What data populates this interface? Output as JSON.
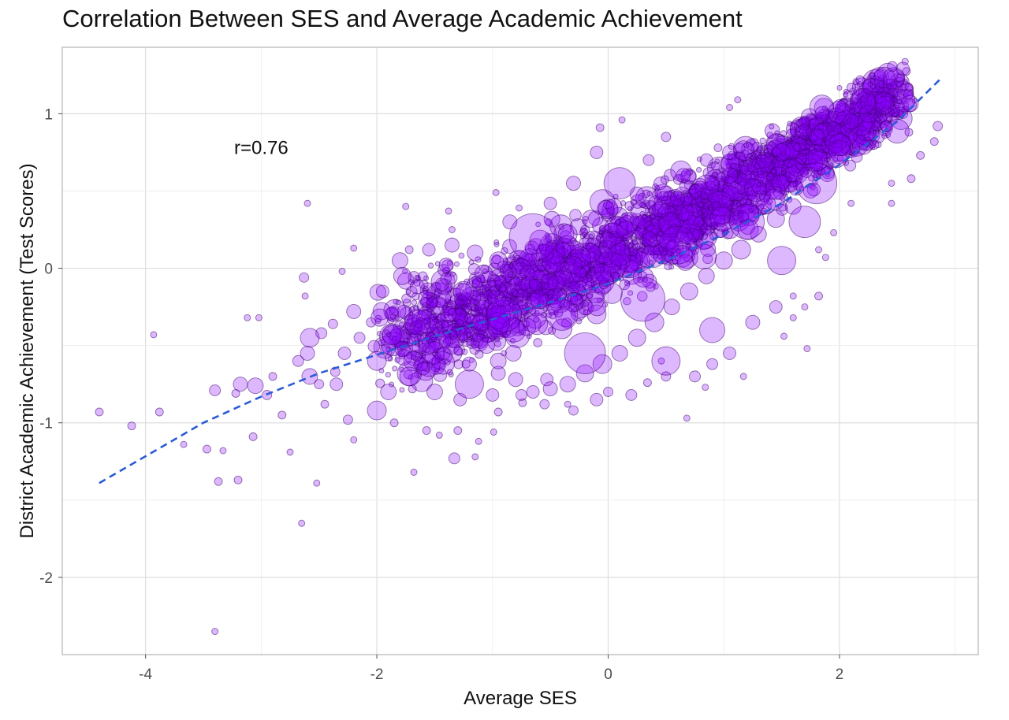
{
  "chart_data": {
    "type": "scatter",
    "title": "Correlation Between SES and Average Academic Achievement",
    "xlabel": "Average SES",
    "ylabel": "District Academic Achievement (Test Scores)",
    "xlim": [
      -4.72,
      3.2
    ],
    "ylim": [
      -2.5,
      1.43
    ],
    "x_ticks": [
      -4,
      -2,
      0,
      2
    ],
    "x_tick_labels": [
      "-4",
      "-2",
      "0",
      "2"
    ],
    "y_ticks": [
      -2,
      -1,
      0,
      1
    ],
    "y_tick_labels": [
      "-2",
      "-1",
      "0",
      "1"
    ],
    "grid": true,
    "legend": "none",
    "annotation": {
      "text": "r=0.76",
      "x": -3.0,
      "y": 0.78
    },
    "point_color": "#8800ff",
    "point_outline": "#3a0066",
    "trend_color": "#2b5bd6",
    "trend_line": {
      "style": "dashed",
      "x": [
        -4.4,
        -3.5,
        -3.0,
        -2.5,
        -2.0,
        -1.5,
        -1.0,
        -0.5,
        0.0,
        0.5,
        1.0,
        1.5,
        2.0,
        2.5,
        2.88
      ],
      "y": [
        -1.39,
        -1.0,
        -0.83,
        -0.68,
        -0.56,
        -0.44,
        -0.33,
        -0.22,
        -0.1,
        0.05,
        0.22,
        0.42,
        0.67,
        0.95,
        1.23
      ]
    },
    "points": [
      [
        -4.4,
        -0.93,
        5
      ],
      [
        -4.12,
        -1.02,
        5
      ],
      [
        -3.88,
        -0.93,
        5
      ],
      [
        -3.93,
        -0.43,
        4
      ],
      [
        -3.67,
        -1.14,
        4
      ],
      [
        -3.4,
        -0.79,
        7
      ],
      [
        -3.47,
        -1.17,
        5
      ],
      [
        -3.37,
        -1.38,
        5
      ],
      [
        -3.33,
        -1.18,
        4
      ],
      [
        -3.2,
        -1.37,
        5
      ],
      [
        -3.12,
        -0.32,
        4
      ],
      [
        -3.02,
        -0.32,
        4
      ],
      [
        -3.07,
        -1.09,
        5
      ],
      [
        -3.4,
        -2.35,
        4
      ],
      [
        -2.65,
        -1.65,
        4
      ],
      [
        -2.75,
        -1.19,
        4
      ],
      [
        -2.52,
        -1.39,
        4
      ],
      [
        -2.2,
        -1.11,
        4
      ],
      [
        -2.62,
        -0.18,
        4
      ],
      [
        -2.6,
        0.42,
        4
      ],
      [
        -2.63,
        -0.06,
        6
      ],
      [
        -2.3,
        -0.02,
        4
      ],
      [
        -2.2,
        0.13,
        4
      ],
      [
        -1.75,
        0.4,
        4
      ],
      [
        -1.72,
        0.12,
        5
      ],
      [
        -1.38,
        0.37,
        4
      ],
      [
        -1.35,
        0.25,
        4
      ],
      [
        -0.97,
        0.49,
        4
      ],
      [
        -0.77,
        0.39,
        4
      ],
      [
        -0.07,
        0.91,
        5
      ],
      [
        0.12,
        0.96,
        4
      ],
      [
        1.05,
        1.04,
        4
      ],
      [
        1.12,
        1.09,
        4
      ],
      [
        0.95,
        0.78,
        5
      ],
      [
        1.4,
        0.86,
        4
      ],
      [
        2.35,
        1.25,
        7
      ],
      [
        2.52,
        1.23,
        5
      ],
      [
        2.6,
        1.17,
        5
      ],
      [
        2.85,
        0.92,
        6
      ],
      [
        2.82,
        0.82,
        5
      ],
      [
        2.7,
        0.73,
        5
      ],
      [
        2.62,
        0.58,
        5
      ],
      [
        2.45,
        0.55,
        4
      ],
      [
        2.45,
        0.42,
        4
      ],
      [
        2.1,
        0.42,
        4
      ],
      [
        1.95,
        0.23,
        4
      ],
      [
        1.82,
        0.12,
        4
      ],
      [
        1.88,
        0.07,
        4
      ],
      [
        1.82,
        -0.18,
        5
      ],
      [
        1.7,
        -0.25,
        4
      ],
      [
        1.6,
        -0.18,
        4
      ],
      [
        1.6,
        -0.32,
        4
      ],
      [
        1.52,
        -0.44,
        4
      ],
      [
        1.72,
        -0.52,
        4
      ],
      [
        1.17,
        -0.7,
        4
      ],
      [
        0.84,
        -0.77,
        4
      ],
      [
        0.68,
        -0.97,
        4
      ],
      [
        0.5,
        -0.7,
        6
      ],
      [
        0.46,
        -0.6,
        4
      ],
      [
        0.34,
        -0.74,
        5
      ],
      [
        0.0,
        -0.8,
        6
      ],
      [
        -0.3,
        -0.92,
        6
      ],
      [
        -0.35,
        -0.88,
        4
      ],
      [
        -0.53,
        -0.72,
        8
      ],
      [
        -0.74,
        -0.87,
        5
      ],
      [
        -0.95,
        -0.93,
        5
      ],
      [
        -0.99,
        -1.06,
        4
      ],
      [
        -1.12,
        -1.12,
        4
      ],
      [
        -1.15,
        -1.22,
        4
      ],
      [
        -1.3,
        -1.05,
        5
      ],
      [
        -1.33,
        -1.23,
        7
      ],
      [
        -1.46,
        -1.08,
        4
      ],
      [
        -1.57,
        -1.05,
        5
      ],
      [
        -1.68,
        -1.32,
        4
      ],
      [
        -1.85,
        -1.0,
        5
      ],
      [
        -2.0,
        -0.92,
        12
      ],
      [
        -1.9,
        -0.8,
        10
      ],
      [
        -2.25,
        -0.98,
        6
      ],
      [
        -2.45,
        -0.88,
        5
      ],
      [
        -2.5,
        -0.75,
        6
      ],
      [
        -2.58,
        -0.7,
        10
      ],
      [
        -2.68,
        -0.6,
        7
      ],
      [
        -2.6,
        -0.55,
        9
      ],
      [
        -2.82,
        -0.95,
        5
      ],
      [
        -2.95,
        -0.82,
        6
      ],
      [
        -3.05,
        -0.76,
        10
      ],
      [
        -3.18,
        -0.75,
        9
      ],
      [
        -2.9,
        -0.7,
        5
      ],
      [
        -3.22,
        -0.81,
        5
      ],
      [
        -2.36,
        -0.67,
        6
      ],
      [
        -2.28,
        -0.55,
        8
      ],
      [
        -2.15,
        -0.45,
        7
      ],
      [
        -2.05,
        -0.35,
        6
      ],
      [
        -2.2,
        -0.28,
        9
      ],
      [
        -2.38,
        -0.36,
        6
      ],
      [
        -2.48,
        -0.42,
        7
      ],
      [
        -2.58,
        -0.45,
        12
      ],
      [
        -1.95,
        -0.15,
        8
      ],
      [
        -1.78,
        -0.05,
        11
      ],
      [
        -1.65,
        -0.12,
        9
      ],
      [
        -1.52,
        -0.22,
        7
      ],
      [
        -1.38,
        -0.3,
        10
      ],
      [
        -1.25,
        -0.42,
        9
      ],
      [
        -1.42,
        -0.55,
        8
      ],
      [
        -1.6,
        -0.65,
        8
      ],
      [
        -1.72,
        -0.7,
        12
      ],
      [
        -1.5,
        -0.8,
        10
      ],
      [
        -1.28,
        -0.85,
        8
      ],
      [
        -1.2,
        -0.62,
        9
      ],
      [
        -1.05,
        -0.5,
        10
      ],
      [
        -0.95,
        -0.68,
        9
      ],
      [
        -0.82,
        -0.55,
        10
      ],
      [
        -0.7,
        -0.38,
        11
      ],
      [
        -0.6,
        -0.2,
        12
      ],
      [
        -0.45,
        -0.1,
        10
      ],
      [
        -0.3,
        0.02,
        11
      ],
      [
        -0.15,
        0.1,
        12
      ],
      [
        0.0,
        0.18,
        10
      ],
      [
        0.15,
        0.25,
        11
      ],
      [
        0.3,
        0.3,
        9
      ],
      [
        0.45,
        0.38,
        10
      ],
      [
        0.6,
        0.45,
        9
      ],
      [
        0.75,
        0.5,
        8
      ],
      [
        0.9,
        0.55,
        9
      ],
      [
        1.05,
        0.6,
        10
      ],
      [
        1.2,
        0.65,
        9
      ],
      [
        1.35,
        0.7,
        10
      ],
      [
        1.5,
        0.75,
        11
      ],
      [
        1.65,
        0.8,
        9
      ],
      [
        1.8,
        0.85,
        10
      ],
      [
        1.95,
        0.9,
        9
      ],
      [
        2.1,
        0.95,
        10
      ],
      [
        2.25,
        1.0,
        11
      ],
      [
        2.2,
        1.08,
        16
      ],
      [
        2.0,
        1.05,
        8
      ],
      [
        1.85,
        1.0,
        9
      ],
      [
        1.7,
        0.95,
        7
      ],
      [
        2.4,
        0.92,
        7
      ],
      [
        2.55,
        1.0,
        6
      ],
      [
        2.6,
        0.88,
        5
      ],
      [
        2.15,
        0.72,
        7
      ],
      [
        2.3,
        0.8,
        6
      ],
      [
        1.9,
        0.62,
        8
      ],
      [
        1.75,
        0.5,
        9
      ],
      [
        1.6,
        0.4,
        10
      ],
      [
        1.45,
        0.32,
        11
      ],
      [
        1.3,
        0.22,
        10
      ],
      [
        1.15,
        0.12,
        12
      ],
      [
        1.0,
        0.05,
        11
      ],
      [
        0.85,
        -0.05,
        10
      ],
      [
        0.7,
        -0.15,
        11
      ],
      [
        0.55,
        -0.25,
        10
      ],
      [
        0.4,
        -0.35,
        12
      ],
      [
        0.25,
        -0.45,
        11
      ],
      [
        0.1,
        -0.55,
        10
      ],
      [
        -0.05,
        -0.62,
        12
      ],
      [
        -0.2,
        -0.68,
        11
      ],
      [
        -0.35,
        -0.75,
        10
      ],
      [
        -0.5,
        -0.78,
        9
      ],
      [
        -0.65,
        -0.8,
        8
      ],
      [
        -0.8,
        -0.72,
        9
      ],
      [
        -0.95,
        -0.6,
        10
      ],
      [
        -1.1,
        -0.35,
        11
      ],
      [
        -1.25,
        -0.15,
        10
      ],
      [
        -1.4,
        0.02,
        9
      ],
      [
        -1.55,
        0.12,
        8
      ],
      [
        -1.35,
        0.15,
        9
      ],
      [
        -1.15,
        0.1,
        10
      ],
      [
        -0.95,
        0.05,
        11
      ],
      [
        -0.75,
        0.0,
        12
      ],
      [
        -0.55,
        0.1,
        11
      ],
      [
        -0.35,
        0.22,
        12
      ],
      [
        -0.15,
        0.32,
        11
      ],
      [
        0.05,
        0.4,
        10
      ],
      [
        0.25,
        0.48,
        9
      ],
      [
        0.45,
        0.55,
        8
      ],
      [
        0.65,
        0.6,
        9
      ],
      [
        0.85,
        0.7,
        8
      ],
      [
        1.05,
        0.75,
        9
      ],
      [
        1.25,
        0.8,
        8
      ],
      [
        -0.65,
        0.2,
        30
      ],
      [
        0.3,
        -0.2,
        28
      ],
      [
        -0.2,
        -0.55,
        26
      ],
      [
        0.6,
        0.15,
        24
      ],
      [
        1.2,
        0.3,
        22
      ],
      [
        1.8,
        0.55,
        26
      ],
      [
        0.1,
        0.55,
        20
      ],
      [
        -0.9,
        -0.3,
        22
      ],
      [
        1.5,
        0.05,
        18
      ],
      [
        -1.2,
        -0.75,
        18
      ],
      [
        0.9,
        -0.4,
        16
      ],
      [
        -0.4,
        -0.3,
        20
      ],
      [
        0.5,
        -0.6,
        18
      ],
      [
        1.7,
        0.3,
        20
      ],
      [
        2.0,
        0.8,
        14
      ],
      [
        -1.65,
        -0.35,
        16
      ],
      [
        -2.0,
        -0.6,
        12
      ],
      [
        -1.8,
        0.05,
        10
      ],
      [
        -2.35,
        -0.75,
        8
      ],
      [
        -0.1,
        0.75,
        8
      ],
      [
        0.5,
        0.85,
        6
      ],
      [
        0.35,
        0.7,
        7
      ],
      [
        -0.3,
        0.55,
        9
      ],
      [
        -0.5,
        0.42,
        8
      ],
      [
        -0.85,
        0.3,
        9
      ],
      [
        1.25,
        -0.35,
        9
      ],
      [
        1.45,
        -0.25,
        8
      ],
      [
        1.05,
        -0.55,
        8
      ],
      [
        0.75,
        -0.7,
        7
      ],
      [
        0.9,
        -0.62,
        7
      ],
      [
        0.2,
        -0.82,
        7
      ],
      [
        -0.1,
        -0.85,
        8
      ],
      [
        -0.55,
        -0.88,
        6
      ],
      [
        -0.75,
        -0.82,
        7
      ],
      [
        -1.0,
        -0.82,
        8
      ]
    ]
  }
}
